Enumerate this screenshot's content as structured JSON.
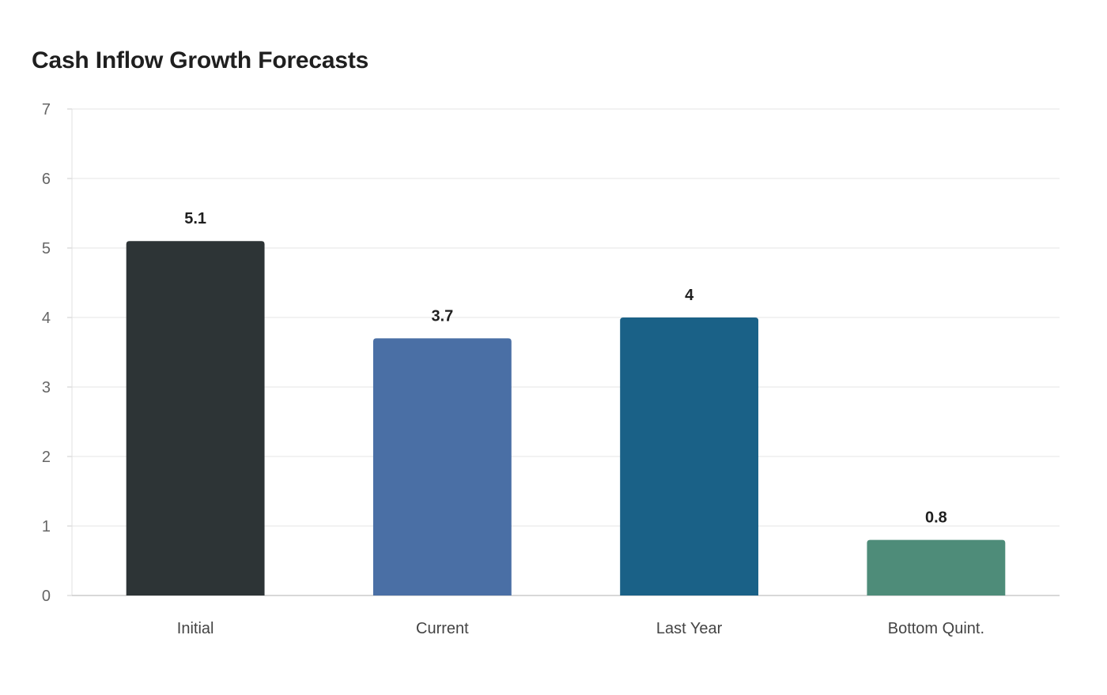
{
  "chart_data": {
    "type": "bar",
    "title": "Cash Inflow Growth Forecasts",
    "xlabel": "",
    "ylabel": "",
    "categories": [
      "Initial",
      "Current",
      "Last Year",
      "Bottom Quint."
    ],
    "values": [
      5.1,
      3.7,
      4,
      0.8
    ],
    "data_labels": [
      "5.1",
      "3.7",
      "4",
      "0.8"
    ],
    "colors": [
      "#2d3436",
      "#4a6fa5",
      "#1a6187",
      "#4e8c79"
    ],
    "ylim": [
      0,
      7
    ],
    "yticks": [
      0,
      1,
      2,
      3,
      4,
      5,
      6,
      7
    ],
    "grid": true,
    "legend": "none"
  }
}
